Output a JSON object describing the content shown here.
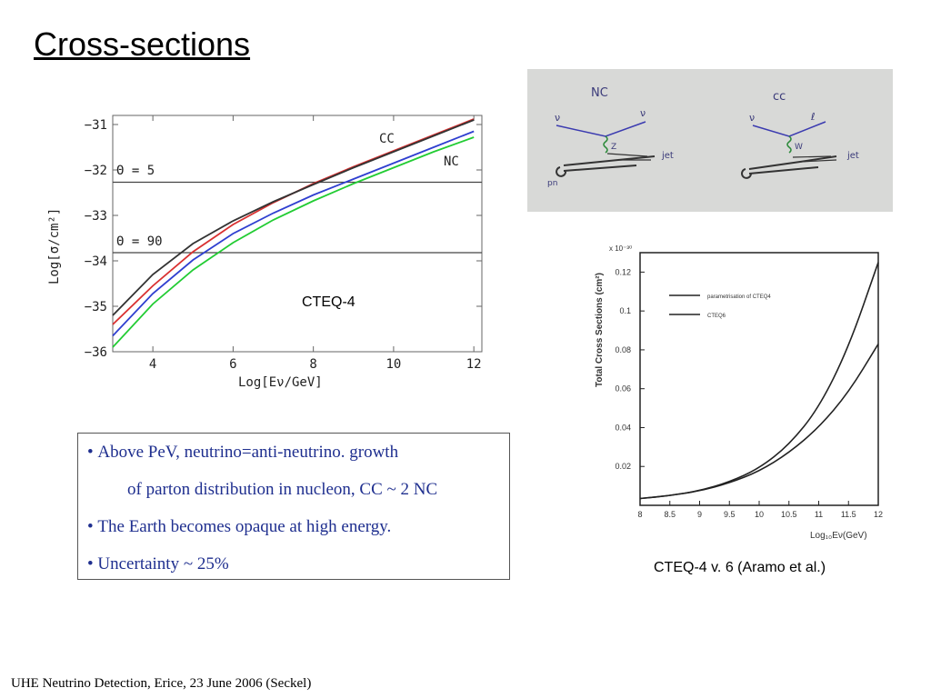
{
  "slide": {
    "title": "Cross-sections",
    "footer": "UHE Neutrino Detection, Erice, 23 June 2006 (Seckel)"
  },
  "bullets": {
    "items": [
      {
        "bullet": "•",
        "text": "Above PeV, neutrino=anti-neutrino. growth"
      },
      {
        "bullet": "",
        "text": "of parton distribution in nucleon, CC ~ 2 NC"
      },
      {
        "bullet": "•",
        "text": "The Earth becomes opaque at high energy."
      },
      {
        "bullet": "•",
        "text": "Uncertainty ~ 25%"
      }
    ]
  },
  "left_chart_caption": "CTEQ-4",
  "right_chart_caption": "CTEQ-4 v. 6 (Aramo et al.)",
  "sketch": {
    "nc_title": "NC",
    "cc_title": "cc",
    "nc_in": "ν",
    "nc_out": "ν",
    "nc_boson": "Z",
    "cc_in": "ν",
    "cc_out": "ℓ",
    "cc_boson": "W",
    "jet": "jet",
    "nucleon": "pn"
  },
  "colors": {
    "cc_curve": "#d93030",
    "nc_curve": "#22cc33",
    "blue_curve": "#2f3fd0",
    "black_curve": "#333333",
    "bullet_text": "#1f2f8f"
  },
  "chart_data": [
    {
      "type": "line",
      "xlabel": "Log[Eν/GeV]",
      "ylabel": "Log[σ/cm²]",
      "xlim": [
        3,
        12.2
      ],
      "ylim": [
        -36,
        -30.8
      ],
      "xticks": [
        4,
        6,
        8,
        10,
        12
      ],
      "yticks": [
        -31,
        -32,
        -33,
        -34,
        -35,
        -36
      ],
      "annotations": {
        "cc": "CC",
        "nc": "NC",
        "theta5": "Θ = 5",
        "theta90": "Θ = 90"
      },
      "horizontal_lines": [
        -32.27,
        -33.82
      ],
      "series": [
        {
          "name": "CC",
          "x": [
            3,
            4,
            5,
            6,
            7,
            8,
            9,
            10,
            11,
            12
          ],
          "y": [
            -35.4,
            -34.55,
            -33.8,
            -33.2,
            -32.72,
            -32.3,
            -31.93,
            -31.58,
            -31.23,
            -30.88
          ]
        },
        {
          "name": "NC",
          "x": [
            3,
            4,
            5,
            6,
            7,
            8,
            9,
            10,
            11,
            12
          ],
          "y": [
            -35.9,
            -34.95,
            -34.2,
            -33.6,
            -33.1,
            -32.68,
            -32.3,
            -31.95,
            -31.6,
            -31.28
          ]
        },
        {
          "name": "",
          "x": [
            3,
            4,
            5,
            6,
            7,
            8,
            9,
            10,
            11,
            12
          ],
          "y": [
            -35.65,
            -34.72,
            -33.98,
            -33.4,
            -32.95,
            -32.55,
            -32.2,
            -31.85,
            -31.5,
            -31.15
          ]
        },
        {
          "name": "",
          "x": [
            3,
            4,
            5,
            6,
            7,
            8,
            9,
            10,
            11,
            12
          ],
          "y": [
            -35.2,
            -34.3,
            -33.62,
            -33.12,
            -32.7,
            -32.32,
            -31.95,
            -31.6,
            -31.25,
            -30.9
          ]
        }
      ]
    },
    {
      "type": "line",
      "xlabel": "Log₁₀Eν(GeV)",
      "ylabel": "Total Cross Sections (cm²)",
      "y_multiplier": "x 10⁻³⁰",
      "xlim": [
        8,
        12
      ],
      "ylim": [
        0,
        0.13
      ],
      "xticks": [
        "8",
        "8.5",
        "9",
        "9.5",
        "10",
        "10.5",
        "11",
        "11.5",
        "12"
      ],
      "yticks": [
        "0.02",
        "0.04",
        "0.06",
        "0.08",
        "0.1",
        "0.12"
      ],
      "legend": [
        "parametrisation of CTEQ4",
        "CTEQ6"
      ],
      "series": [
        {
          "name": "parametrisation of CTEQ4",
          "x": [
            8,
            8.5,
            9,
            9.5,
            10,
            10.5,
            11,
            11.5,
            12
          ],
          "y": [
            0.0035,
            0.005,
            0.0075,
            0.012,
            0.019,
            0.031,
            0.05,
            0.081,
            0.125
          ]
        },
        {
          "name": "CTEQ6",
          "x": [
            8,
            8.5,
            9,
            9.5,
            10,
            10.5,
            11,
            11.5,
            12
          ],
          "y": [
            0.0035,
            0.005,
            0.0074,
            0.0115,
            0.0175,
            0.027,
            0.04,
            0.058,
            0.083
          ]
        }
      ]
    }
  ]
}
